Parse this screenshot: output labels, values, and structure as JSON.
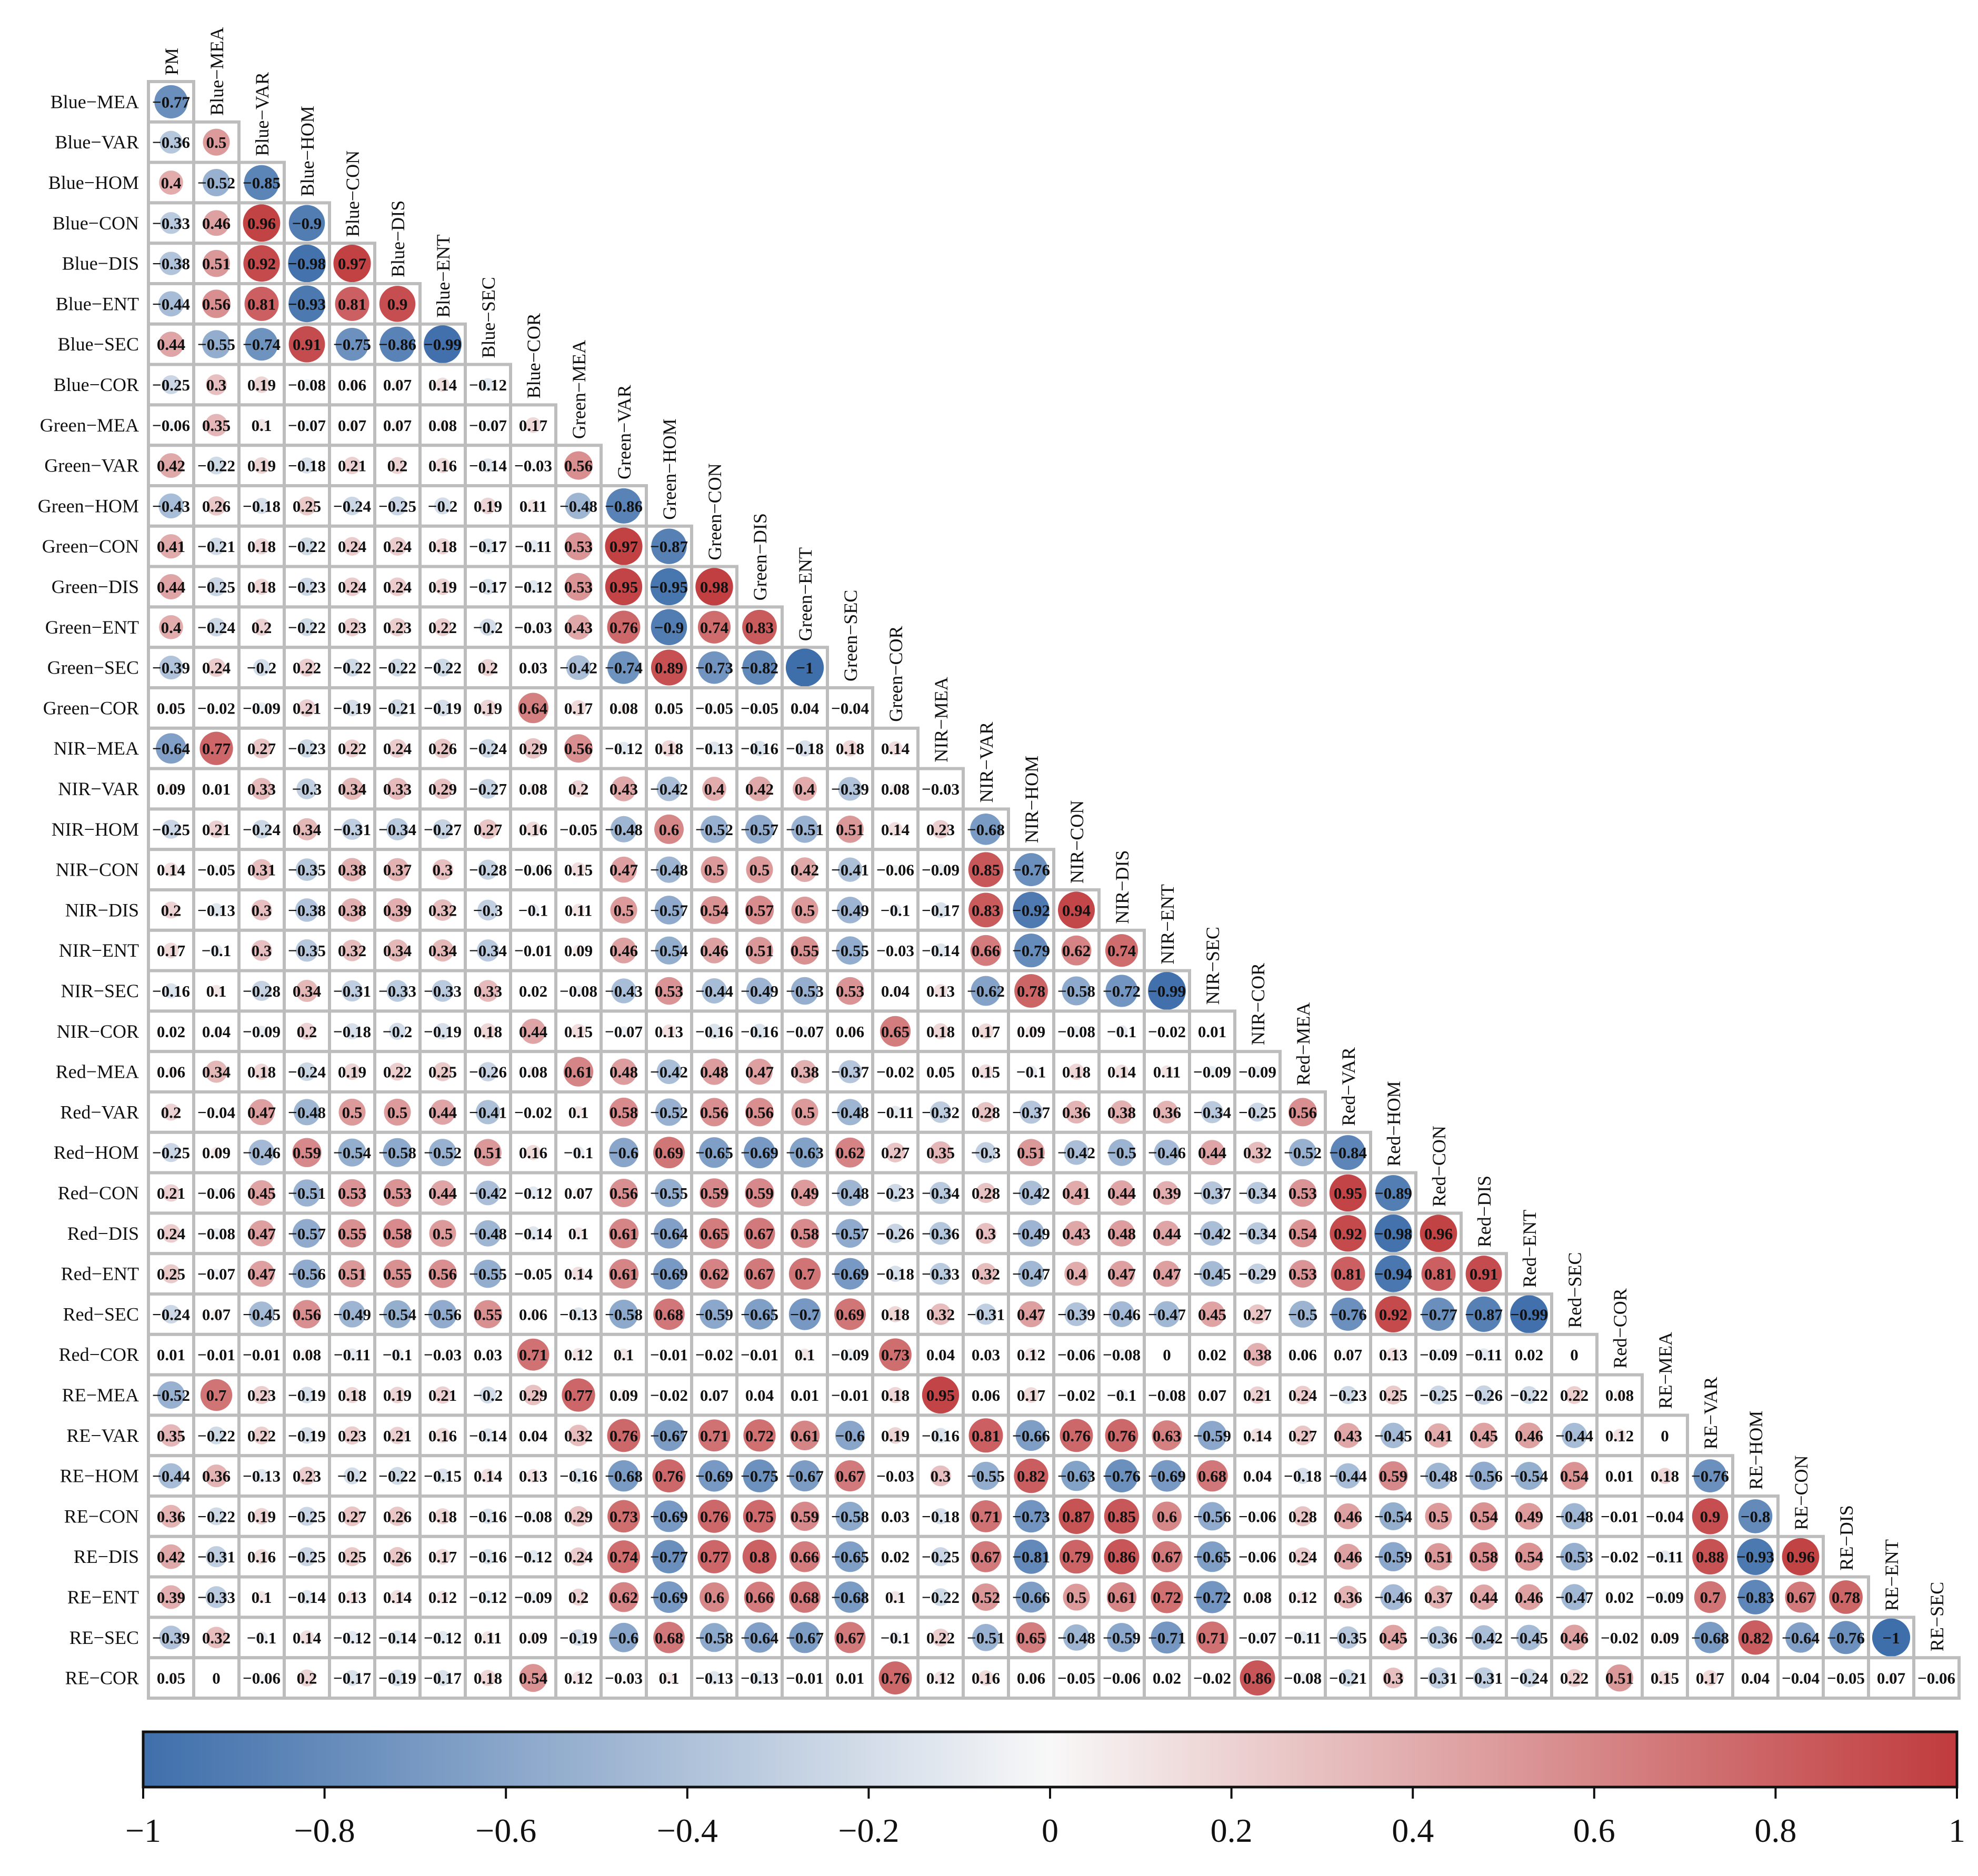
{
  "chart_data": {
    "type": "heatmap",
    "subtype": "lower-triangular correlation matrix (circle size and color encode r)",
    "title": "",
    "variables": [
      "PM",
      "Blue−MEA",
      "Blue−VAR",
      "Blue−HOM",
      "Blue−CON",
      "Blue−DIS",
      "Blue−ENT",
      "Blue−SEC",
      "Blue−COR",
      "Green−MEA",
      "Green−VAR",
      "Green−HOM",
      "Green−CON",
      "Green−DIS",
      "Green−ENT",
      "Green−SEC",
      "Green−COR",
      "NIR−MEA",
      "NIR−VAR",
      "NIR−HOM",
      "NIR−CON",
      "NIR−DIS",
      "NIR−ENT",
      "NIR−SEC",
      "NIR−COR",
      "Red−MEA",
      "Red−VAR",
      "Red−HOM",
      "Red−CON",
      "Red−DIS",
      "Red−ENT",
      "Red−SEC",
      "Red−COR",
      "RE−MEA",
      "RE−VAR",
      "RE−HOM",
      "RE−CON",
      "RE−DIS",
      "RE−ENT",
      "RE−SEC",
      "RE−COR"
    ],
    "row_labels": [
      "Blue−MEA",
      "Blue−VAR",
      "Blue−HOM",
      "Blue−CON",
      "Blue−DIS",
      "Blue−ENT",
      "Blue−SEC",
      "Blue−COR",
      "Green−MEA",
      "Green−VAR",
      "Green−HOM",
      "Green−CON",
      "Green−DIS",
      "Green−ENT",
      "Green−SEC",
      "Green−COR",
      "NIR−MEA",
      "NIR−VAR",
      "NIR−HOM",
      "NIR−CON",
      "NIR−DIS",
      "NIR−ENT",
      "NIR−SEC",
      "NIR−COR",
      "Red−MEA",
      "Red−VAR",
      "Red−HOM",
      "Red−CON",
      "Red−DIS",
      "Red−ENT",
      "Red−SEC",
      "Red−COR",
      "RE−MEA",
      "RE−VAR",
      "RE−HOM",
      "RE−CON",
      "RE−DIS",
      "RE−ENT",
      "RE−SEC",
      "RE−COR"
    ],
    "col_labels": [
      "PM",
      "Blue−MEA",
      "Blue−VAR",
      "Blue−HOM",
      "Blue−CON",
      "Blue−DIS",
      "Blue−ENT",
      "Blue−SEC",
      "Blue−COR",
      "Green−MEA",
      "Green−VAR",
      "Green−HOM",
      "Green−CON",
      "Green−DIS",
      "Green−ENT",
      "Green−SEC",
      "Green−COR",
      "NIR−MEA",
      "NIR−VAR",
      "NIR−HOM",
      "NIR−CON",
      "NIR−DIS",
      "NIR−ENT",
      "NIR−SEC",
      "NIR−COR",
      "Red−MEA",
      "Red−VAR",
      "Red−HOM",
      "Red−CON",
      "Red−DIS",
      "Red−ENT",
      "Red−SEC",
      "Red−COR",
      "RE−MEA",
      "RE−VAR",
      "RE−HOM",
      "RE−CON",
      "RE−DIS",
      "RE−ENT",
      "RE−SEC"
    ],
    "matrix": [
      [
        -0.77
      ],
      [
        -0.36,
        0.5
      ],
      [
        0.4,
        -0.52,
        -0.85
      ],
      [
        -0.33,
        0.46,
        0.96,
        -0.9
      ],
      [
        -0.38,
        0.51,
        0.92,
        -0.98,
        0.97
      ],
      [
        -0.44,
        0.56,
        0.81,
        -0.93,
        0.81,
        0.9
      ],
      [
        0.44,
        -0.55,
        -0.74,
        0.91,
        -0.75,
        -0.86,
        -0.99
      ],
      [
        -0.25,
        0.3,
        0.19,
        -0.08,
        0.06,
        0.07,
        0.14,
        -0.12
      ],
      [
        -0.06,
        0.35,
        0.1,
        -0.07,
        0.07,
        0.07,
        0.08,
        -0.07,
        0.17
      ],
      [
        0.42,
        -0.22,
        0.19,
        -0.18,
        0.21,
        0.2,
        0.16,
        -0.14,
        -0.03,
        0.56
      ],
      [
        -0.43,
        0.26,
        -0.18,
        0.25,
        -0.24,
        -0.25,
        -0.2,
        0.19,
        0.11,
        -0.48,
        -0.86
      ],
      [
        0.41,
        -0.21,
        0.18,
        -0.22,
        0.24,
        0.24,
        0.18,
        -0.17,
        -0.11,
        0.53,
        0.97,
        -0.87
      ],
      [
        0.44,
        -0.25,
        0.18,
        -0.23,
        0.24,
        0.24,
        0.19,
        -0.17,
        -0.12,
        0.53,
        0.95,
        -0.95,
        0.98
      ],
      [
        0.4,
        -0.24,
        0.2,
        -0.22,
        0.23,
        0.23,
        0.22,
        -0.2,
        -0.03,
        0.43,
        0.76,
        -0.9,
        0.74,
        0.83
      ],
      [
        -0.39,
        0.24,
        -0.2,
        0.22,
        -0.22,
        -0.22,
        -0.22,
        0.2,
        0.03,
        -0.42,
        -0.74,
        0.89,
        -0.73,
        -0.82,
        -1
      ],
      [
        0.05,
        -0.02,
        -0.09,
        0.21,
        -0.19,
        -0.21,
        -0.19,
        0.19,
        0.64,
        0.17,
        0.08,
        0.05,
        -0.05,
        -0.05,
        0.04,
        -0.04
      ],
      [
        -0.64,
        0.77,
        0.27,
        -0.23,
        0.22,
        0.24,
        0.26,
        -0.24,
        0.29,
        0.56,
        -0.12,
        0.18,
        -0.13,
        -0.16,
        -0.18,
        0.18,
        0.14
      ],
      [
        0.09,
        0.01,
        0.33,
        -0.3,
        0.34,
        0.33,
        0.29,
        -0.27,
        0.08,
        0.2,
        0.43,
        -0.42,
        0.4,
        0.42,
        0.4,
        -0.39,
        0.08,
        -0.03
      ],
      [
        -0.25,
        0.21,
        -0.24,
        0.34,
        -0.31,
        -0.34,
        -0.27,
        0.27,
        0.16,
        -0.05,
        -0.48,
        0.6,
        -0.52,
        -0.57,
        -0.51,
        0.51,
        0.14,
        0.23,
        -0.68
      ],
      [
        0.14,
        -0.05,
        0.31,
        -0.35,
        0.38,
        0.37,
        0.3,
        -0.28,
        -0.06,
        0.15,
        0.47,
        -0.48,
        0.5,
        0.5,
        0.42,
        -0.41,
        -0.06,
        -0.09,
        0.85,
        -0.76
      ],
      [
        0.2,
        -0.13,
        0.3,
        -0.38,
        0.38,
        0.39,
        0.32,
        -0.3,
        -0.1,
        0.11,
        0.5,
        -0.57,
        0.54,
        0.57,
        0.5,
        -0.49,
        -0.1,
        -0.17,
        0.83,
        -0.92,
        0.94
      ],
      [
        0.17,
        -0.1,
        0.3,
        -0.35,
        0.32,
        0.34,
        0.34,
        -0.34,
        -0.01,
        0.09,
        0.46,
        -0.54,
        0.46,
        0.51,
        0.55,
        -0.55,
        -0.03,
        -0.14,
        0.66,
        -0.79,
        0.62,
        0.74
      ],
      [
        -0.16,
        0.1,
        -0.28,
        0.34,
        -0.31,
        -0.33,
        -0.33,
        0.33,
        0.02,
        -0.08,
        -0.43,
        0.53,
        -0.44,
        -0.49,
        -0.53,
        0.53,
        0.04,
        0.13,
        -0.62,
        0.78,
        -0.58,
        -0.72,
        -0.99
      ],
      [
        0.02,
        0.04,
        -0.09,
        0.2,
        -0.18,
        -0.2,
        -0.19,
        0.18,
        0.44,
        0.15,
        -0.07,
        0.13,
        -0.16,
        -0.16,
        -0.07,
        0.06,
        0.65,
        0.18,
        0.17,
        0.09,
        -0.08,
        -0.1,
        -0.02,
        0.01
      ],
      [
        0.06,
        0.34,
        0.18,
        -0.24,
        0.19,
        0.22,
        0.25,
        -0.26,
        0.08,
        0.61,
        0.48,
        -0.42,
        0.48,
        0.47,
        0.38,
        -0.37,
        -0.02,
        0.05,
        0.15,
        -0.1,
        0.18,
        0.14,
        0.11,
        -0.09,
        -0.09
      ],
      [
        0.2,
        -0.04,
        0.47,
        -0.48,
        0.5,
        0.5,
        0.44,
        -0.41,
        -0.02,
        0.1,
        0.58,
        -0.52,
        0.56,
        0.56,
        0.5,
        -0.48,
        -0.11,
        -0.32,
        0.28,
        -0.37,
        0.36,
        0.38,
        0.36,
        -0.34,
        -0.25,
        0.56
      ],
      [
        -0.25,
        0.09,
        -0.46,
        0.59,
        -0.54,
        -0.58,
        -0.52,
        0.51,
        0.16,
        -0.1,
        -0.6,
        0.69,
        -0.65,
        -0.69,
        -0.63,
        0.62,
        0.27,
        0.35,
        -0.3,
        0.51,
        -0.42,
        -0.5,
        -0.46,
        0.44,
        0.32,
        -0.52,
        -0.84
      ],
      [
        0.21,
        -0.06,
        0.45,
        -0.51,
        0.53,
        0.53,
        0.44,
        -0.42,
        -0.12,
        0.07,
        0.56,
        -0.55,
        0.59,
        0.59,
        0.49,
        -0.48,
        -0.23,
        -0.34,
        0.28,
        -0.42,
        0.41,
        0.44,
        0.39,
        -0.37,
        -0.34,
        0.53,
        0.95,
        -0.89
      ],
      [
        0.24,
        -0.08,
        0.47,
        -0.57,
        0.55,
        0.58,
        0.5,
        -0.48,
        -0.14,
        0.1,
        0.61,
        -0.64,
        0.65,
        0.67,
        0.58,
        -0.57,
        -0.26,
        -0.36,
        0.3,
        -0.49,
        0.43,
        0.48,
        0.44,
        -0.42,
        -0.34,
        0.54,
        0.92,
        -0.98,
        0.96
      ],
      [
        0.25,
        -0.07,
        0.47,
        -0.56,
        0.51,
        0.55,
        0.56,
        -0.55,
        -0.05,
        0.14,
        0.61,
        -0.69,
        0.62,
        0.67,
        0.7,
        -0.69,
        -0.18,
        -0.33,
        0.32,
        -0.47,
        0.4,
        0.47,
        0.47,
        -0.45,
        -0.29,
        0.53,
        0.81,
        -0.94,
        0.81,
        0.91
      ],
      [
        -0.24,
        0.07,
        -0.45,
        0.56,
        -0.49,
        -0.54,
        -0.56,
        0.55,
        0.06,
        -0.13,
        -0.58,
        0.68,
        -0.59,
        -0.65,
        -0.7,
        0.69,
        0.18,
        0.32,
        -0.31,
        0.47,
        -0.39,
        -0.46,
        -0.47,
        0.45,
        0.27,
        -0.5,
        -0.76,
        0.92,
        -0.77,
        -0.87,
        -0.99
      ],
      [
        0.01,
        -0.01,
        -0.01,
        0.08,
        -0.11,
        -0.1,
        -0.03,
        0.03,
        0.71,
        0.12,
        0.1,
        -0.01,
        -0.02,
        -0.01,
        0.1,
        -0.09,
        0.73,
        0.04,
        0.03,
        0.12,
        -0.06,
        -0.08,
        0,
        0.02,
        0.38,
        0.06,
        0.07,
        0.13,
        -0.09,
        -0.11,
        0.02,
        0
      ],
      [
        -0.52,
        0.7,
        0.23,
        -0.19,
        0.18,
        0.19,
        0.21,
        -0.2,
        0.29,
        0.77,
        0.09,
        -0.02,
        0.07,
        0.04,
        0.01,
        -0.01,
        0.18,
        0.95,
        0.06,
        0.17,
        -0.02,
        -0.1,
        -0.08,
        0.07,
        0.21,
        0.24,
        -0.23,
        0.25,
        -0.25,
        -0.26,
        -0.22,
        0.22,
        0.08
      ],
      [
        0.35,
        -0.22,
        0.22,
        -0.19,
        0.23,
        0.21,
        0.16,
        -0.14,
        0.04,
        0.32,
        0.76,
        -0.67,
        0.71,
        0.72,
        0.61,
        -0.6,
        0.19,
        -0.16,
        0.81,
        -0.66,
        0.76,
        0.76,
        0.63,
        -0.59,
        0.14,
        0.27,
        0.43,
        -0.45,
        0.41,
        0.45,
        0.46,
        -0.44,
        0.12,
        0
      ],
      [
        -0.44,
        0.36,
        -0.13,
        0.23,
        -0.2,
        -0.22,
        -0.15,
        0.14,
        0.13,
        -0.16,
        -0.68,
        0.76,
        -0.69,
        -0.75,
        -0.67,
        0.67,
        -0.03,
        0.3,
        -0.55,
        0.82,
        -0.63,
        -0.76,
        -0.69,
        0.68,
        0.04,
        -0.18,
        -0.44,
        0.59,
        -0.48,
        -0.56,
        -0.54,
        0.54,
        0.01,
        0.18,
        -0.76
      ],
      [
        0.36,
        -0.22,
        0.19,
        -0.25,
        0.27,
        0.26,
        0.18,
        -0.16,
        -0.08,
        0.29,
        0.73,
        -0.69,
        0.76,
        0.75,
        0.59,
        -0.58,
        0.03,
        -0.18,
        0.71,
        -0.73,
        0.87,
        0.85,
        0.6,
        -0.56,
        -0.06,
        0.28,
        0.46,
        -0.54,
        0.5,
        0.54,
        0.49,
        -0.48,
        -0.01,
        -0.04,
        0.9,
        -0.8
      ],
      [
        0.42,
        -0.31,
        0.16,
        -0.25,
        0.25,
        0.26,
        0.17,
        -0.16,
        -0.12,
        0.24,
        0.74,
        -0.77,
        0.77,
        0.8,
        0.66,
        -0.65,
        0.02,
        -0.25,
        0.67,
        -0.81,
        0.79,
        0.86,
        0.67,
        -0.65,
        -0.06,
        0.24,
        0.46,
        -0.59,
        0.51,
        0.58,
        0.54,
        -0.53,
        -0.02,
        -0.11,
        0.88,
        -0.93,
        0.96
      ],
      [
        0.39,
        -0.33,
        0.1,
        -0.14,
        0.13,
        0.14,
        0.12,
        -0.12,
        -0.09,
        0.2,
        0.62,
        -0.69,
        0.6,
        0.66,
        0.68,
        -0.68,
        0.1,
        -0.22,
        0.52,
        -0.66,
        0.5,
        0.61,
        0.72,
        -0.72,
        0.08,
        0.12,
        0.36,
        -0.46,
        0.37,
        0.44,
        0.46,
        -0.47,
        0.02,
        -0.09,
        0.7,
        -0.83,
        0.67,
        0.78
      ],
      [
        -0.39,
        0.32,
        -0.1,
        0.14,
        -0.12,
        -0.14,
        -0.12,
        0.11,
        0.09,
        -0.19,
        -0.6,
        0.68,
        -0.58,
        -0.64,
        -0.67,
        0.67,
        -0.1,
        0.22,
        -0.51,
        0.65,
        -0.48,
        -0.59,
        -0.71,
        0.71,
        -0.07,
        -0.11,
        -0.35,
        0.45,
        -0.36,
        -0.42,
        -0.45,
        0.46,
        -0.02,
        0.09,
        -0.68,
        0.82,
        -0.64,
        -0.76,
        -1
      ],
      [
        0.05,
        0,
        -0.06,
        0.2,
        -0.17,
        -0.19,
        -0.17,
        0.18,
        0.54,
        0.12,
        -0.03,
        0.1,
        -0.13,
        -0.13,
        -0.01,
        0.01,
        0.76,
        0.12,
        0.16,
        0.06,
        -0.05,
        -0.06,
        0.02,
        -0.02,
        0.86,
        -0.08,
        -0.21,
        0.3,
        -0.31,
        -0.31,
        -0.24,
        0.22,
        0.51,
        0.15,
        0.17,
        0.04,
        -0.04,
        -0.05,
        0.07,
        -0.06
      ]
    ],
    "color_scale": {
      "domain": [
        -1,
        0,
        1
      ],
      "colors": [
        "#3f6fab",
        "#f8f8f8",
        "#c03b3d"
      ],
      "ticks": [
        -1,
        -0.8,
        -0.6,
        -0.4,
        -0.2,
        0,
        0.2,
        0.4,
        0.6,
        0.8,
        1
      ],
      "tick_labels": [
        "−1",
        "−0.8",
        "−0.6",
        "−0.4",
        "−0.2",
        "0",
        "0.2",
        "0.4",
        "0.6",
        "0.8",
        "1"
      ]
    },
    "legend": "colorbar at bottom"
  }
}
